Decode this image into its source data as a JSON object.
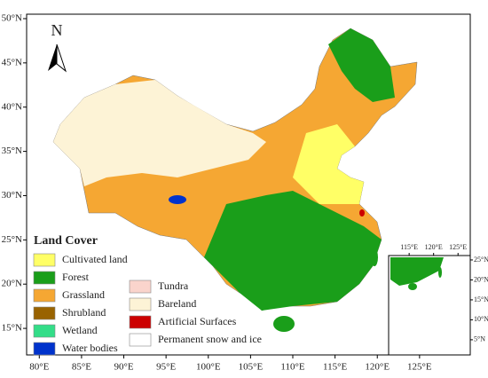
{
  "map": {
    "north_label": "N",
    "xlim": [
      78.5,
      131
    ],
    "ylim": [
      12,
      50.5
    ],
    "xticks": [
      {
        "value": 80,
        "label": "80°E"
      },
      {
        "value": 85,
        "label": "85°E"
      },
      {
        "value": 90,
        "label": "90°E"
      },
      {
        "value": 95,
        "label": "95°E"
      },
      {
        "value": 100,
        "label": "100°E"
      },
      {
        "value": 105,
        "label": "105°E"
      },
      {
        "value": 110,
        "label": "110°E"
      },
      {
        "value": 115,
        "label": "115°E"
      },
      {
        "value": 120,
        "label": "120°E"
      },
      {
        "value": 125,
        "label": "125°E"
      }
    ],
    "yticks": [
      {
        "value": 15,
        "label": "15°N"
      },
      {
        "value": 20,
        "label": "20°N"
      },
      {
        "value": 25,
        "label": "25°N"
      },
      {
        "value": 30,
        "label": "30°N"
      },
      {
        "value": 35,
        "label": "35°N"
      },
      {
        "value": 40,
        "label": "40°N"
      },
      {
        "value": 45,
        "label": "45°N"
      },
      {
        "value": 50,
        "label": "50°N"
      }
    ],
    "inset": {
      "xlim": [
        110.8,
        127.5
      ],
      "ylim": [
        1.2,
        26.1
      ],
      "xticks": [
        {
          "value": 115,
          "label": "115°E"
        },
        {
          "value": 120,
          "label": "120°E"
        },
        {
          "value": 125,
          "label": "125°E"
        }
      ],
      "yticks": [
        {
          "value": 5,
          "label": "5°N"
        },
        {
          "value": 10,
          "label": "10°N"
        },
        {
          "value": 15,
          "label": "15°N"
        },
        {
          "value": 20,
          "label": "20°N"
        },
        {
          "value": 25,
          "label": "25°N"
        }
      ]
    },
    "legend": {
      "title": "Land Cover",
      "items": [
        {
          "label": "Cultivated land",
          "color": "#ffff66"
        },
        {
          "label": "Forest",
          "color": "#1a9e1a"
        },
        {
          "label": "Grassland",
          "color": "#f5a733"
        },
        {
          "label": "Shrubland",
          "color": "#996300"
        },
        {
          "label": "Wetland",
          "color": "#33dd88"
        },
        {
          "label": "Water bodies",
          "color": "#0033cc"
        },
        {
          "label": "Tundra",
          "color": "#fad4cc"
        },
        {
          "label": "Bareland",
          "color": "#fdf3d6"
        },
        {
          "label": "Artificial Surfaces",
          "color": "#cc0000"
        },
        {
          "label": "Permanent snow and ice",
          "color": "#ffffff"
        }
      ]
    }
  }
}
